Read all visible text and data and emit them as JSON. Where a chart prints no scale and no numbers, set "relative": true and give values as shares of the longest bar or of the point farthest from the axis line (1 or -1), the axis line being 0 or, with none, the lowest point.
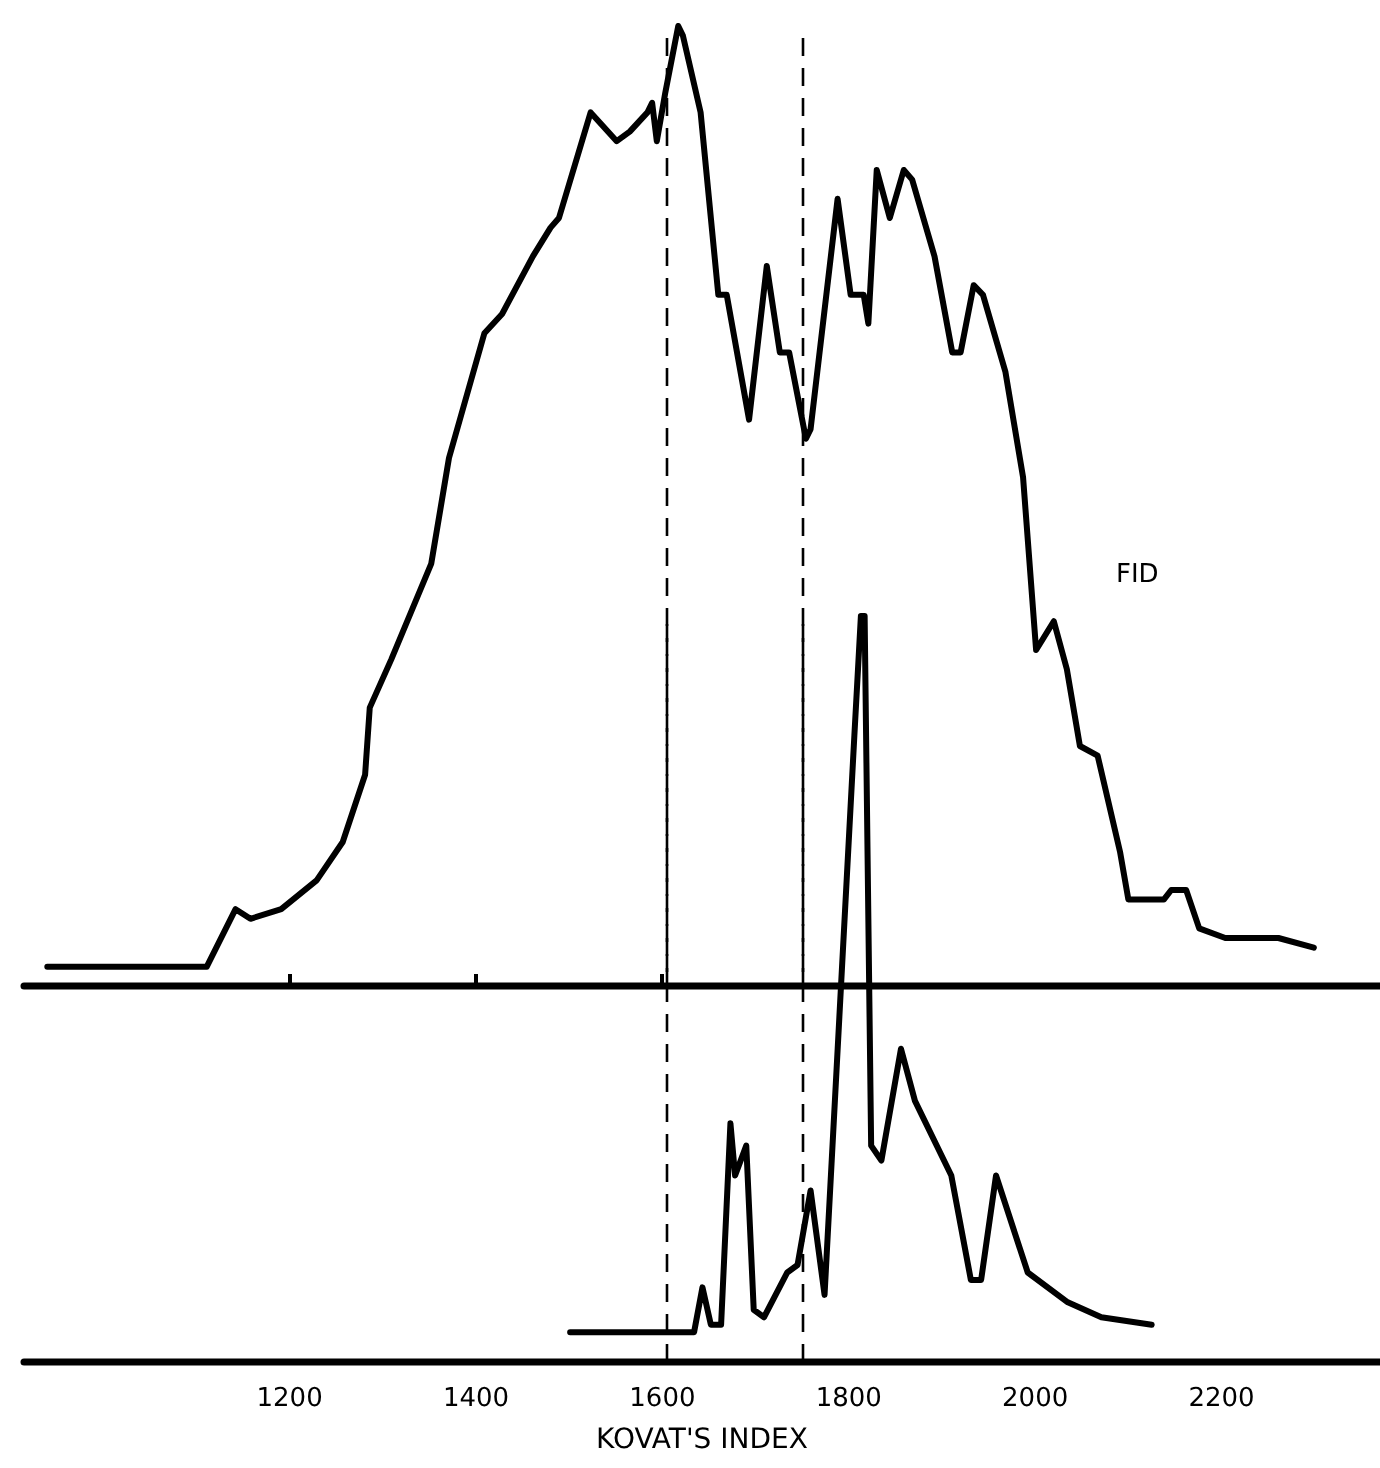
{
  "chart_data": [
    {
      "type": "line",
      "relative": true,
      "xlim": [
        915,
        2370
      ],
      "xticks": [
        {
          "value": 1200,
          "label": null
        },
        {
          "value": 1400,
          "label": null
        },
        {
          "value": 1600,
          "label": null
        }
      ],
      "tick_labels": false,
      "marker": "none",
      "line_style": "solid",
      "grid": false,
      "legend": false,
      "series": [
        {
          "name": "FID",
          "color": "#000000",
          "x": [
            940,
            983,
            1030,
            1111,
            1142,
            1158,
            1191,
            1229,
            1257,
            1281,
            1286,
            1309,
            1352,
            1371,
            1409,
            1428,
            1461,
            1480,
            1489,
            1523,
            1551,
            1565,
            1584,
            1589,
            1594,
            1603,
            1617,
            1622,
            1641,
            1660,
            1669,
            1693,
            1712,
            1726,
            1736,
            1754,
            1759,
            1788,
            1802,
            1816,
            1821,
            1830,
            1844,
            1859,
            1868,
            1892,
            1911,
            1920,
            1934,
            1944,
            1968,
            1987,
            2001,
            2020,
            2034,
            2048,
            2067,
            2091,
            2100,
            2119,
            2138,
            2146,
            2162,
            2176,
            2204,
            2233,
            2261,
            2299
          ],
          "values": [
            0.02,
            0.02,
            0.02,
            0.02,
            0.08,
            0.07,
            0.08,
            0.11,
            0.15,
            0.22,
            0.29,
            0.34,
            0.44,
            0.55,
            0.68,
            0.7,
            0.76,
            0.79,
            0.8,
            0.91,
            0.88,
            0.89,
            0.91,
            0.92,
            0.88,
            0.93,
            1.0,
            0.99,
            0.91,
            0.72,
            0.72,
            0.59,
            0.75,
            0.66,
            0.66,
            0.57,
            0.58,
            0.82,
            0.72,
            0.72,
            0.69,
            0.85,
            0.8,
            0.85,
            0.84,
            0.76,
            0.66,
            0.66,
            0.73,
            0.72,
            0.64,
            0.53,
            0.35,
            0.38,
            0.33,
            0.25,
            0.24,
            0.14,
            0.09,
            0.09,
            0.09,
            0.1,
            0.1,
            0.06,
            0.05,
            0.05,
            0.05,
            0.04
          ]
        }
      ],
      "ref_lines": [
        {
          "axis": "x",
          "value": 1605,
          "line_style": "dashed"
        },
        {
          "axis": "x",
          "value": 1750,
          "line_style": "dashed"
        }
      ]
    },
    {
      "type": "line",
      "relative": true,
      "xlim": [
        915,
        2370
      ],
      "xticks": [
        1200,
        1400,
        1600,
        1800,
        2000,
        2200
      ],
      "xlabel": "KOVAT'S INDEX",
      "tick_labels": "x",
      "marker": "none",
      "line_style": "solid",
      "grid": false,
      "legend": false,
      "series": [
        {
          "color": "#000000",
          "x": [
            1501,
            1634,
            1643,
            1652,
            1663,
            1673,
            1678,
            1690,
            1698,
            1709,
            1734,
            1745,
            1759,
            1774,
            1806,
            1813,
            1817,
            1824,
            1835,
            1856,
            1871,
            1910,
            1931,
            1942,
            1958,
            1992,
            2035,
            2071,
            2125
          ],
          "values": [
            0.04,
            0.04,
            0.1,
            0.05,
            0.05,
            0.32,
            0.25,
            0.29,
            0.07,
            0.06,
            0.12,
            0.13,
            0.23,
            0.09,
            0.84,
            1.0,
            1.0,
            0.29,
            0.27,
            0.42,
            0.35,
            0.25,
            0.11,
            0.11,
            0.25,
            0.12,
            0.08,
            0.06,
            0.05
          ]
        }
      ],
      "ref_lines": [
        {
          "axis": "x",
          "value": 1605,
          "line_style": "dashed"
        },
        {
          "axis": "x",
          "value": 1750,
          "line_style": "dashed"
        }
      ]
    }
  ]
}
